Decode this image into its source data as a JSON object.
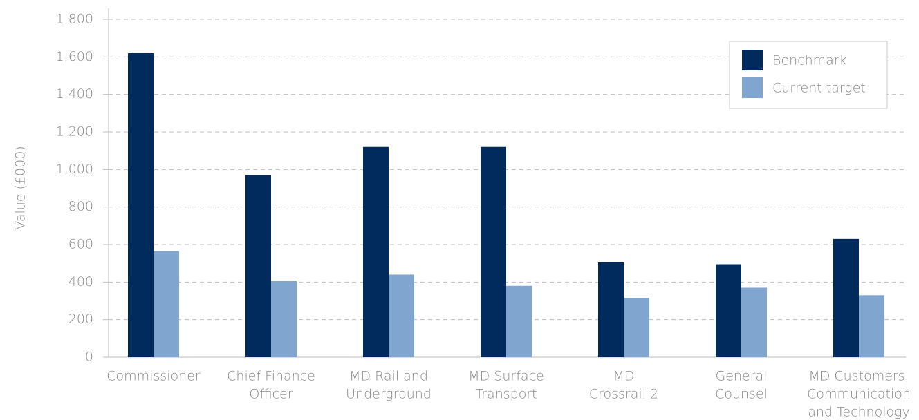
{
  "chart_data": {
    "type": "bar",
    "y_label": "Value (£000)",
    "categories": [
      [
        "Commissioner"
      ],
      [
        "Chief Finance",
        "Officer"
      ],
      [
        "MD Rail and",
        "Underground"
      ],
      [
        "MD Surface",
        "Transport"
      ],
      [
        "MD",
        "Crossrail 2"
      ],
      [
        "General",
        "Counsel"
      ],
      [
        "MD Customers,",
        "Communication",
        "and Technology"
      ]
    ],
    "series": [
      {
        "name": "Benchmark",
        "color": "#002b5c",
        "values": [
          1620,
          970,
          1120,
          1120,
          505,
          495,
          630
        ]
      },
      {
        "name": "Current target",
        "color": "#80a6d0",
        "values": [
          565,
          405,
          440,
          380,
          315,
          370,
          330
        ]
      }
    ],
    "ylim": [
      0,
      1800
    ],
    "yticks": [
      0,
      200,
      400,
      600,
      800,
      {
        "value": 1000,
        "label": "1,000"
      },
      {
        "value": 1200,
        "label": "1,200"
      },
      {
        "value": 1400,
        "label": "1,400"
      },
      {
        "value": 1600,
        "label": "1,600"
      },
      {
        "value": 1800,
        "label": "1,800"
      }
    ],
    "grid": true,
    "legend": "top-right"
  }
}
